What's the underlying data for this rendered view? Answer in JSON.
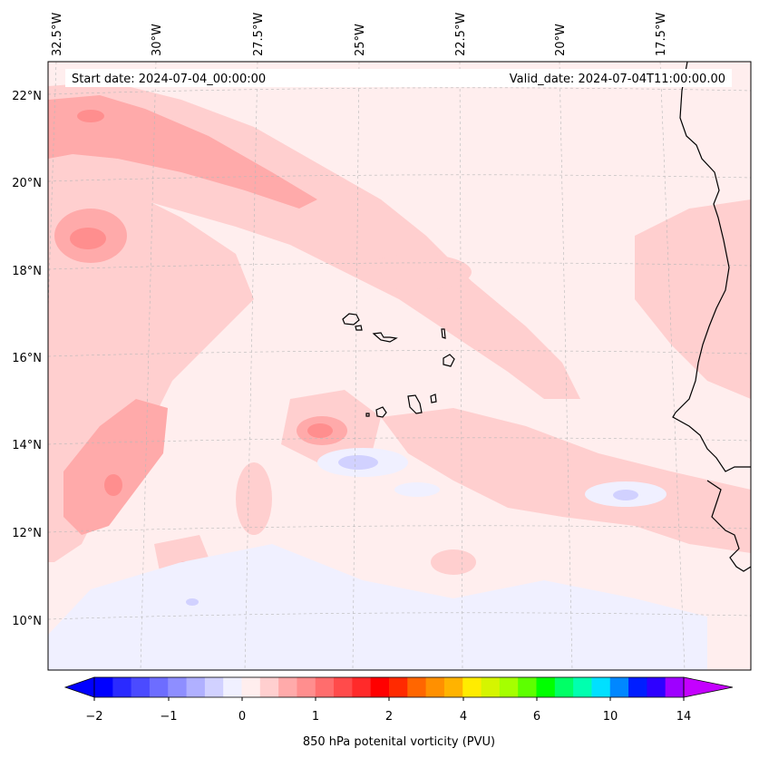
{
  "header": {
    "start_date": "Start date: 2024-07-04_00:00:00",
    "valid_date": "Valid_date: 2024-07-04T11:00:00.00"
  },
  "axes": {
    "lon_labels": [
      "32.5°W",
      "30°W",
      "27.5°W",
      "25°W",
      "22.5°W",
      "20°W",
      "17.5°W"
    ],
    "lat_labels": [
      "22°N",
      "20°N",
      "18°N",
      "16°N",
      "14°N",
      "12°N",
      "10°N"
    ]
  },
  "colorbar": {
    "label": "850 hPa potenital vorticity (PVU)",
    "tick_labels": [
      "−2",
      "−1",
      "0",
      "1",
      "2",
      "4",
      "6",
      "10",
      "14"
    ],
    "colors": [
      "#0000ff",
      "#2a2aff",
      "#4b4bff",
      "#6d6dff",
      "#8e8eff",
      "#b0b0ff",
      "#d1d1ff",
      "#f0f0ff",
      "#ffeeee",
      "#ffcfcf",
      "#ffaaaa",
      "#ff8e8e",
      "#ff6d6d",
      "#ff4b4b",
      "#ff2a2a",
      "#ff0000",
      "#ff2a00",
      "#ff6600",
      "#ff9000",
      "#ffb300",
      "#ffec00",
      "#d5f500",
      "#a5ff00",
      "#5dff00",
      "#00ff00",
      "#00ff66",
      "#00ffaf",
      "#00e0ff",
      "#0087ff",
      "#001eff",
      "#2e00ff",
      "#9e00ff"
    ],
    "under_color": "#0000ff",
    "over_color": "#c400ff"
  },
  "chart_data": {
    "type": "heatmap",
    "title": "",
    "variable": "850 hPa potenital vorticity (PVU)",
    "lon_range": [
      -33.0,
      -15.7
    ],
    "lat_range": [
      8.9,
      22.8
    ],
    "levels": [
      -2,
      -1.75,
      -1.5,
      -1.25,
      -1,
      -0.75,
      -0.5,
      -0.25,
      0,
      0.25,
      0.5,
      0.75,
      1,
      1.25,
      1.5,
      1.75,
      2,
      2.5,
      3,
      3.5,
      4,
      4.5,
      5,
      5.5,
      6,
      7,
      8,
      9,
      10,
      11,
      12,
      13,
      14
    ],
    "features": [
      {
        "name": "NW PV band",
        "approx_max_pvu": 1.0
      },
      {
        "name": "SW PV maximum near 32W 13N",
        "approx_max_pvu": 1.0
      },
      {
        "name": "Cape Verde islands",
        "approx_max_pvu": 0.75
      },
      {
        "name": "Weak negative PV patches",
        "approx_min_pvu": -0.5
      }
    ]
  }
}
